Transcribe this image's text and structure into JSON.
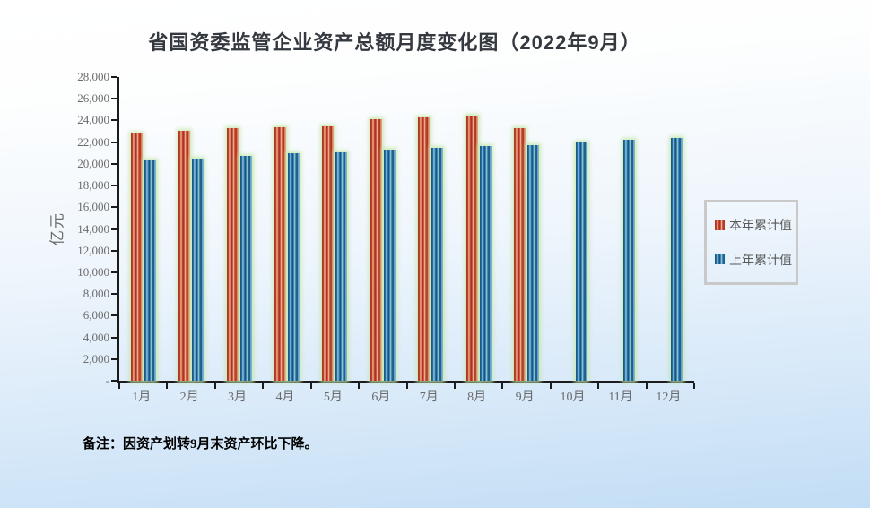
{
  "chart": {
    "title": "省国资委监管企业资产总额月度变化图（2022年9月）",
    "y_axis": {
      "title": "亿元",
      "tick_labels": [
        "28,000",
        "26,000",
        "24,000",
        "22,000",
        "20,000",
        "18,000",
        "16,000",
        "14,000",
        "12,000",
        "10,000",
        "8,000",
        "6,000",
        "4,000",
        "2,000",
        "-"
      ]
    },
    "x_axis": {
      "labels": [
        "1月",
        "2月",
        "3月",
        "4月",
        "5月",
        "6月",
        "7月",
        "8月",
        "9月",
        "10月",
        "11月",
        "12月"
      ]
    },
    "legend_items": [
      {
        "label": "本年累计值",
        "color": "#d04a32"
      },
      {
        "label": "上年累计值",
        "color": "#2e86c1"
      }
    ],
    "note": "备注：因资产划转9月末资产环比下降。",
    "colors": {
      "series1": "#d04a32",
      "series2": "#2e86c1",
      "axis": "#1b1b1b",
      "bg_top": "#ffffff",
      "bg_bottom": "#c2ddf5",
      "glow": "#c6e8ac"
    }
  },
  "chart_data": {
    "type": "bar",
    "title": "省国资委监管企业资产总额月度变化图（2022年9月）",
    "categories": [
      "1月",
      "2月",
      "3月",
      "4月",
      "5月",
      "6月",
      "7月",
      "8月",
      "9月",
      "10月",
      "11月",
      "12月"
    ],
    "series": [
      {
        "name": "本年累计值",
        "color": "#d04a32",
        "values": [
          22800,
          23050,
          23300,
          23400,
          23500,
          24100,
          24250,
          24450,
          23300,
          null,
          null,
          null
        ]
      },
      {
        "name": "上年累计值",
        "color": "#2e86c1",
        "values": [
          20350,
          20450,
          20750,
          20950,
          21050,
          21300,
          21450,
          21650,
          21750,
          21950,
          22200,
          22400
        ]
      }
    ],
    "xlabel": "",
    "ylabel": "亿元",
    "ylim": [
      0,
      28000
    ],
    "ytick_step": 2000,
    "grid": false,
    "legend_position": "right",
    "note": "备注：因资产划转9月末资产环比下降。"
  }
}
